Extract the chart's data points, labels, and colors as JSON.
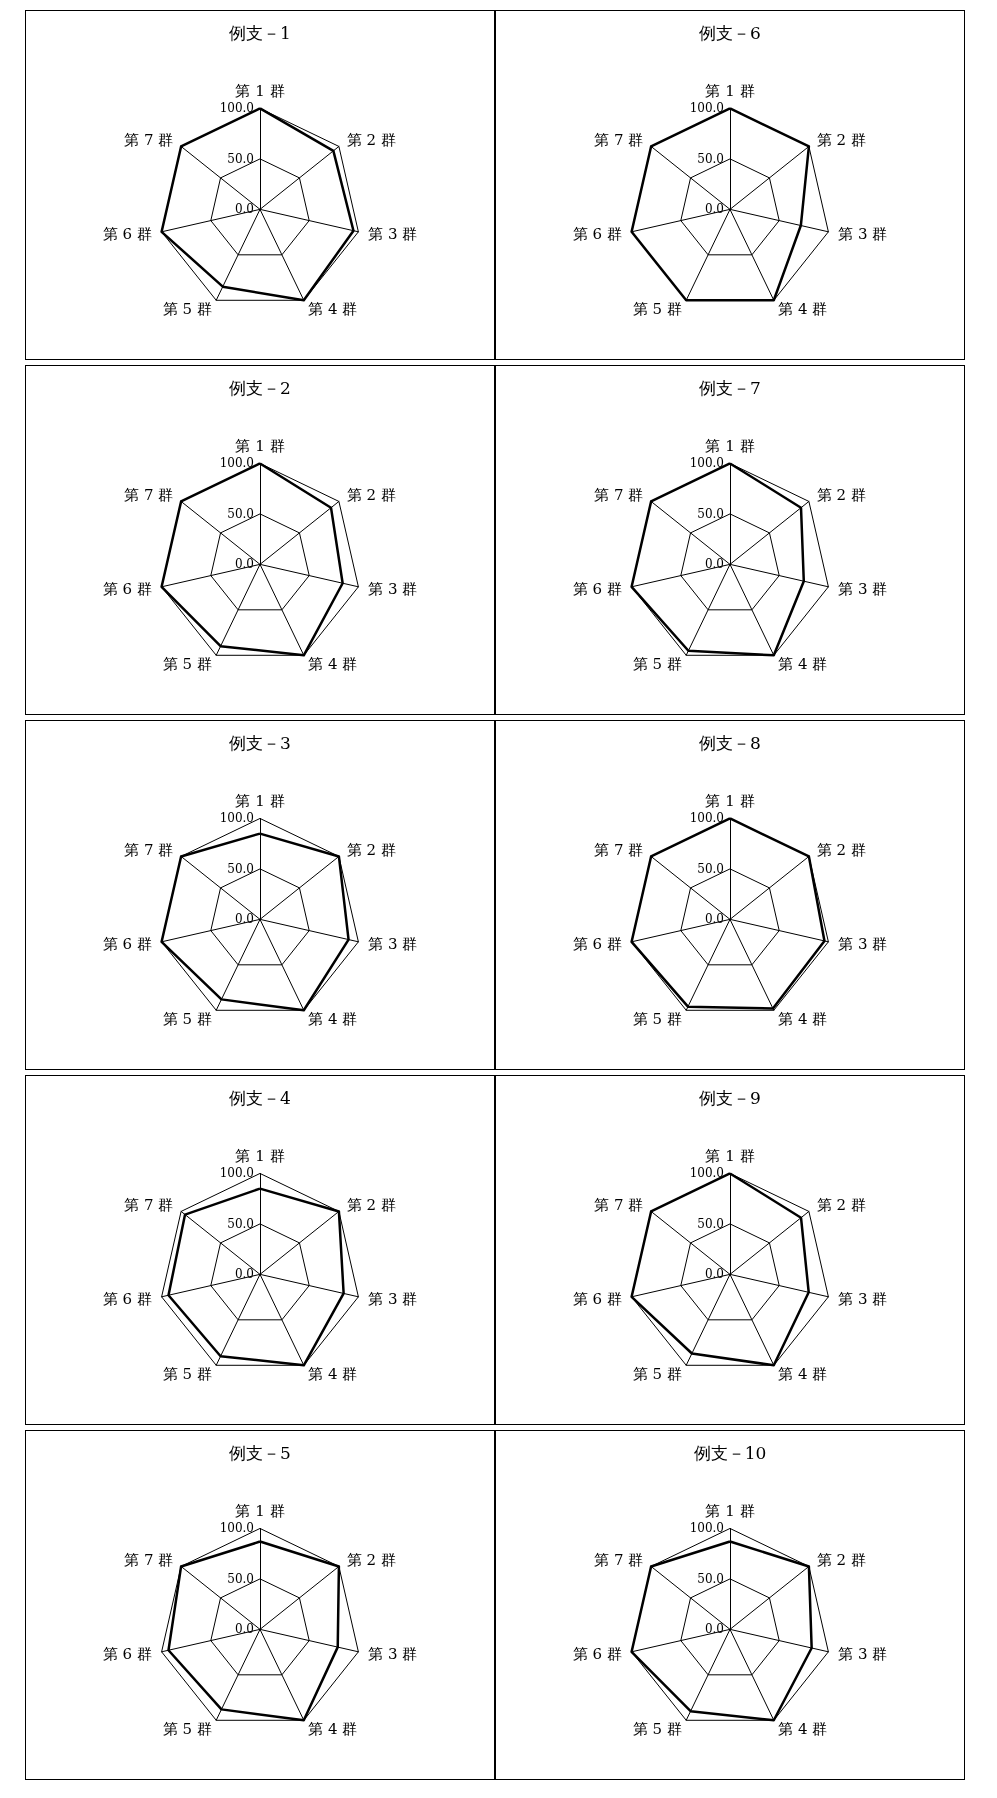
{
  "chart_data": [
    {
      "type": "radar",
      "title": "例支－1",
      "categories": [
        "第 1 群",
        "第 2 群",
        "第 3 群",
        "第 4 群",
        "第 5 群",
        "第 6 群",
        "第 7 群"
      ],
      "ylim": [
        0,
        100
      ],
      "yticks": [
        {
          "value": 0,
          "label": "0.0"
        },
        {
          "value": 50,
          "label": "50.0"
        },
        {
          "value": 100,
          "label": "100.0"
        }
      ],
      "series": [
        {
          "color": "#000000",
          "values": [
            100,
            93,
            95,
            100,
            85,
            100,
            100
          ]
        }
      ]
    },
    {
      "type": "radar",
      "title": "例支－6",
      "categories": [
        "第 1 群",
        "第 2 群",
        "第 3 群",
        "第 4 群",
        "第 5 群",
        "第 6 群",
        "第 7 群"
      ],
      "ylim": [
        0,
        100
      ],
      "yticks": [
        {
          "value": 0,
          "label": "0.0"
        },
        {
          "value": 50,
          "label": "50.0"
        },
        {
          "value": 100,
          "label": "100.0"
        }
      ],
      "series": [
        {
          "color": "#000000",
          "values": [
            100,
            100,
            72,
            100,
            100,
            100,
            100
          ]
        }
      ]
    },
    {
      "type": "radar",
      "title": "例支－2",
      "categories": [
        "第 1 群",
        "第 2 群",
        "第 3 群",
        "第 4 群",
        "第 5 群",
        "第 6 群",
        "第 7 群"
      ],
      "ylim": [
        0,
        100
      ],
      "yticks": [
        {
          "value": 0,
          "label": "0.0"
        },
        {
          "value": 50,
          "label": "50.0"
        },
        {
          "value": 100,
          "label": "100.0"
        }
      ],
      "series": [
        {
          "color": "#000000",
          "values": [
            100,
            90,
            84,
            100,
            90,
            100,
            100
          ]
        }
      ]
    },
    {
      "type": "radar",
      "title": "例支－7",
      "categories": [
        "第 1 群",
        "第 2 群",
        "第 3 群",
        "第 4 群",
        "第 5 群",
        "第 6 群",
        "第 7 群"
      ],
      "ylim": [
        0,
        100
      ],
      "yticks": [
        {
          "value": 0,
          "label": "0.0"
        },
        {
          "value": 50,
          "label": "50.0"
        },
        {
          "value": 100,
          "label": "100.0"
        }
      ],
      "series": [
        {
          "color": "#000000",
          "values": [
            100,
            90,
            75,
            100,
            95,
            100,
            100
          ]
        }
      ]
    },
    {
      "type": "radar",
      "title": "例支－3",
      "categories": [
        "第 1 群",
        "第 2 群",
        "第 3 群",
        "第 4 群",
        "第 5 群",
        "第 6 群",
        "第 7 群"
      ],
      "ylim": [
        0,
        100
      ],
      "yticks": [
        {
          "value": 0,
          "label": "0.0"
        },
        {
          "value": 50,
          "label": "50.0"
        },
        {
          "value": 100,
          "label": "100.0"
        }
      ],
      "series": [
        {
          "color": "#000000",
          "values": [
            85,
            100,
            90,
            100,
            88,
            100,
            100
          ]
        }
      ]
    },
    {
      "type": "radar",
      "title": "例支－8",
      "categories": [
        "第 1 群",
        "第 2 群",
        "第 3 群",
        "第 4 群",
        "第 5 群",
        "第 6 群",
        "第 7 群"
      ],
      "ylim": [
        0,
        100
      ],
      "yticks": [
        {
          "value": 0,
          "label": "0.0"
        },
        {
          "value": 50,
          "label": "50.0"
        },
        {
          "value": 100,
          "label": "100.0"
        }
      ],
      "series": [
        {
          "color": "#000000",
          "values": [
            100,
            100,
            96,
            98,
            96,
            100,
            100
          ]
        }
      ]
    },
    {
      "type": "radar",
      "title": "例支－4",
      "categories": [
        "第 1 群",
        "第 2 群",
        "第 3 群",
        "第 4 群",
        "第 5 群",
        "第 6 群",
        "第 7 群"
      ],
      "ylim": [
        0,
        100
      ],
      "yticks": [
        {
          "value": 0,
          "label": "0.0"
        },
        {
          "value": 50,
          "label": "50.0"
        },
        {
          "value": 100,
          "label": "100.0"
        }
      ],
      "series": [
        {
          "color": "#000000",
          "values": [
            85,
            100,
            85,
            100,
            90,
            93,
            95
          ]
        }
      ]
    },
    {
      "type": "radar",
      "title": "例支－9",
      "categories": [
        "第 1 群",
        "第 2 群",
        "第 3 群",
        "第 4 群",
        "第 5 群",
        "第 6 群",
        "第 7 群"
      ],
      "ylim": [
        0,
        100
      ],
      "yticks": [
        {
          "value": 0,
          "label": "0.0"
        },
        {
          "value": 50,
          "label": "50.0"
        },
        {
          "value": 100,
          "label": "100.0"
        }
      ],
      "series": [
        {
          "color": "#000000",
          "values": [
            100,
            90,
            80,
            100,
            87,
            100,
            100
          ]
        }
      ]
    },
    {
      "type": "radar",
      "title": "例支－5",
      "categories": [
        "第 1 群",
        "第 2 群",
        "第 3 群",
        "第 4 群",
        "第 5 群",
        "第 6 群",
        "第 7 群"
      ],
      "ylim": [
        0,
        100
      ],
      "yticks": [
        {
          "value": 0,
          "label": "0.0"
        },
        {
          "value": 50,
          "label": "50.0"
        },
        {
          "value": 100,
          "label": "100.0"
        }
      ],
      "series": [
        {
          "color": "#000000",
          "values": [
            87,
            100,
            79,
            100,
            88,
            93,
            100
          ]
        }
      ]
    },
    {
      "type": "radar",
      "title": "例支－10",
      "categories": [
        "第 1 群",
        "第 2 群",
        "第 3 群",
        "第 4 群",
        "第 5 群",
        "第 6 群",
        "第 7 群"
      ],
      "ylim": [
        0,
        100
      ],
      "yticks": [
        {
          "value": 0,
          "label": "0.0"
        },
        {
          "value": 50,
          "label": "50.0"
        },
        {
          "value": 100,
          "label": "100.0"
        }
      ],
      "series": [
        {
          "color": "#000000",
          "values": [
            87,
            100,
            83,
            100,
            90,
            100,
            100
          ]
        }
      ]
    }
  ]
}
